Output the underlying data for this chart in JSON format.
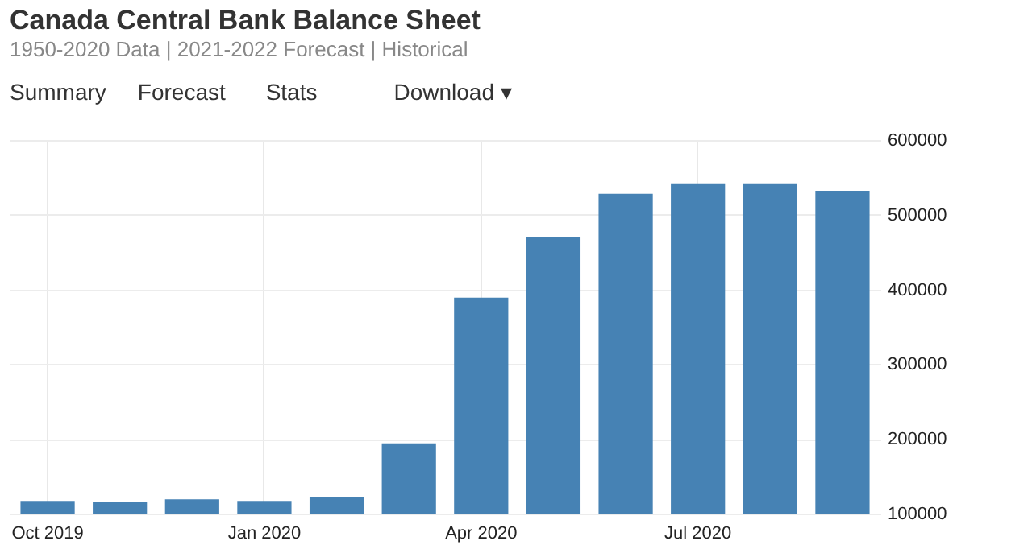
{
  "chart_data": {
    "type": "bar",
    "title": "Canada Central Bank Balance Sheet",
    "subtitle": "1950-2020 Data | 2021-2022 Forecast | Historical",
    "annotations": [
      "Summary",
      "Forecast",
      "Stats",
      "Download ▾"
    ],
    "categories": [
      "Oct 2019",
      null,
      null,
      "Jan 2020",
      null,
      null,
      "Apr 2020",
      null,
      null,
      "Jul 2020",
      null,
      null
    ],
    "values": [
      117000,
      116000,
      119000,
      117000,
      122000,
      194000,
      389000,
      470000,
      528000,
      542000,
      542000,
      532000
    ],
    "color": "#4682b4",
    "ylim": [
      100000,
      600000
    ],
    "yticks": [
      100000,
      200000,
      300000,
      400000,
      500000,
      600000
    ],
    "grid": true
  }
}
